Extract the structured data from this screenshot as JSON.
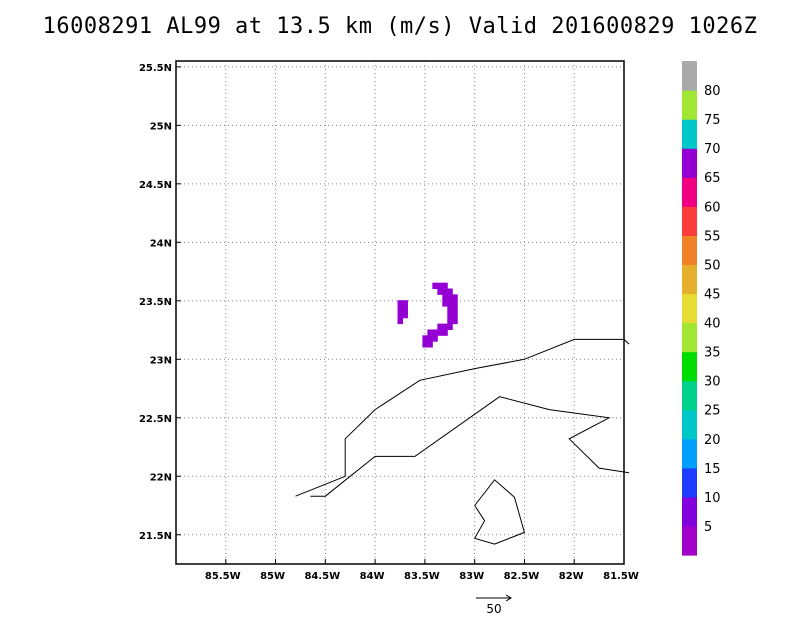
{
  "title": "16008291 AL99 at 13.5 km (m/s) Valid 201600829 1026Z",
  "map": {
    "lon_range": [
      -86.0,
      -81.5
    ],
    "lat_range": [
      21.25,
      25.55
    ],
    "lon_ticks": [
      -85.5,
      -85.0,
      -84.5,
      -84.0,
      -83.5,
      -83.0,
      -82.5,
      -82.0,
      -81.5
    ],
    "lon_tick_labels": [
      "85.5W",
      "85W",
      "84.5W",
      "84W",
      "83.5W",
      "83W",
      "82.5W",
      "82W",
      "81.5W"
    ],
    "lat_ticks": [
      21.5,
      22.0,
      22.5,
      23.0,
      23.5,
      24.0,
      24.5,
      25.0,
      25.5
    ],
    "lat_tick_labels": [
      "21.5N",
      "22N",
      "22.5N",
      "23N",
      "23.5N",
      "24N",
      "24.5N",
      "25N",
      "25.5N"
    ],
    "grid": true,
    "coastlines": [
      [
        [
          -84.8,
          21.83
        ],
        [
          -84.3,
          22.0
        ],
        [
          -84.3,
          22.32
        ],
        [
          -84.0,
          22.57
        ],
        [
          -83.55,
          22.82
        ],
        [
          -83.0,
          22.92
        ],
        [
          -82.5,
          23.0
        ],
        [
          -82.0,
          23.17
        ],
        [
          -81.5,
          23.17
        ],
        [
          -81.45,
          23.13
        ]
      ],
      [
        [
          -84.65,
          21.83
        ],
        [
          -84.5,
          21.83
        ],
        [
          -84.0,
          22.17
        ],
        [
          -83.6,
          22.17
        ],
        [
          -82.75,
          22.68
        ],
        [
          -82.25,
          22.57
        ],
        [
          -81.65,
          22.5
        ],
        [
          -82.05,
          22.32
        ],
        [
          -81.75,
          22.07
        ],
        [
          -81.45,
          22.03
        ]
      ],
      [
        [
          -83.0,
          21.75
        ],
        [
          -82.8,
          21.97
        ],
        [
          -82.6,
          21.82
        ],
        [
          -82.5,
          21.52
        ],
        [
          -82.8,
          21.42
        ],
        [
          -83.0,
          21.47
        ],
        [
          -82.9,
          21.62
        ],
        [
          -83.0,
          21.75
        ]
      ]
    ],
    "wind_pixels_color": "#9400d3",
    "wind_cells": [
      [
        -83.4,
        23.63
      ],
      [
        -83.35,
        23.63
      ],
      [
        -83.3,
        23.63
      ],
      [
        -83.35,
        23.58
      ],
      [
        -83.3,
        23.58
      ],
      [
        -83.25,
        23.58
      ],
      [
        -83.3,
        23.53
      ],
      [
        -83.25,
        23.53
      ],
      [
        -83.2,
        23.53
      ],
      [
        -83.75,
        23.48
      ],
      [
        -83.7,
        23.48
      ],
      [
        -83.3,
        23.48
      ],
      [
        -83.25,
        23.48
      ],
      [
        -83.2,
        23.48
      ],
      [
        -83.75,
        23.43
      ],
      [
        -83.7,
        23.43
      ],
      [
        -83.25,
        23.43
      ],
      [
        -83.2,
        23.43
      ],
      [
        -83.75,
        23.38
      ],
      [
        -83.7,
        23.38
      ],
      [
        -83.25,
        23.38
      ],
      [
        -83.2,
        23.38
      ],
      [
        -83.75,
        23.33
      ],
      [
        -83.25,
        23.33
      ],
      [
        -83.2,
        23.33
      ],
      [
        -83.35,
        23.28
      ],
      [
        -83.3,
        23.28
      ],
      [
        -83.25,
        23.28
      ],
      [
        -83.45,
        23.23
      ],
      [
        -83.4,
        23.23
      ],
      [
        -83.35,
        23.23
      ],
      [
        -83.3,
        23.23
      ],
      [
        -83.5,
        23.18
      ],
      [
        -83.45,
        23.18
      ],
      [
        -83.4,
        23.18
      ],
      [
        -83.5,
        23.13
      ],
      [
        -83.45,
        23.13
      ]
    ],
    "reference_vector_label": "50"
  },
  "colorbar": {
    "colors": [
      "#a000c8",
      "#8200dc",
      "#1e3cff",
      "#00a0ff",
      "#00c8c8",
      "#00d28c",
      "#00dc00",
      "#a0e632",
      "#e6dc32",
      "#e6af2d",
      "#f08228",
      "#fa3c3c",
      "#f00082",
      "#9400d3",
      "#00c8c8",
      "#a0e632",
      "#aaaaaa"
    ],
    "labels": [
      "5",
      "10",
      "15",
      "20",
      "25",
      "30",
      "35",
      "40",
      "45",
      "50",
      "55",
      "60",
      "65",
      "70",
      "75",
      "80"
    ]
  }
}
